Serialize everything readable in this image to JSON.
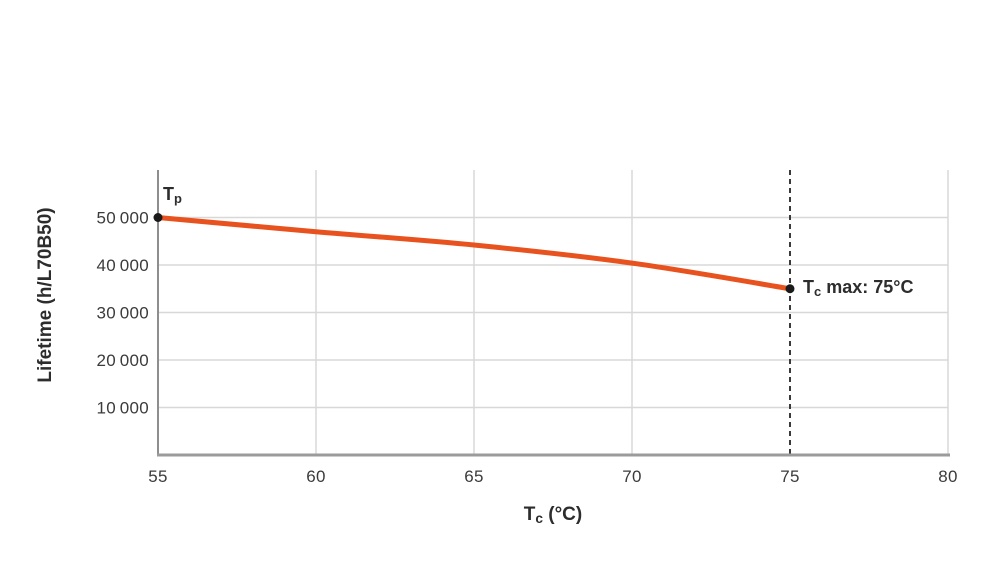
{
  "chart_data": {
    "type": "line",
    "x": [
      55,
      60,
      65,
      70,
      75
    ],
    "series": [
      {
        "name": "Lifetime",
        "values": [
          50000,
          47000,
          44200,
          40400,
          35000
        ]
      }
    ],
    "xlabel": {
      "main": "T",
      "sub": "c",
      "rest": " (°C)"
    },
    "ylabel": "Lifetime (h/L70B50)",
    "xlim": [
      55,
      80
    ],
    "ylim": [
      0,
      60000
    ],
    "x_ticks": {
      "values": [
        55,
        60,
        65,
        70,
        75,
        80
      ],
      "labels": [
        "55",
        "60",
        "65",
        "70",
        "75",
        "80"
      ]
    },
    "y_ticks": {
      "values": [
        10000,
        20000,
        30000,
        40000,
        50000
      ],
      "labels": [
        "10 000",
        "20 000",
        "30 000",
        "40 000",
        "50 000"
      ]
    },
    "grid": "on",
    "legend": "none",
    "max_line": {
      "x": 75
    },
    "markers": [
      {
        "x": 55,
        "y": 50000
      },
      {
        "x": 75,
        "y": 35000
      }
    ],
    "annotations": {
      "tp": {
        "main": "T",
        "sub": "p",
        "rest": "",
        "anchor_x": 55,
        "anchor_y": 50000
      },
      "tc_max": {
        "main": "T",
        "sub": "c",
        "rest": " max: 75°C",
        "anchor_x": 75,
        "anchor_y": 35000
      }
    }
  },
  "colors": {
    "line": "#E8521E",
    "grid": "#D8D8D8",
    "axis": "#9B9B9B",
    "axis_left": "#8E8E8E",
    "dashed_line": "#3A3A3A",
    "text": "#3B3B3B",
    "marker": "#1A1A1A",
    "background": "#FFFFFF"
  }
}
